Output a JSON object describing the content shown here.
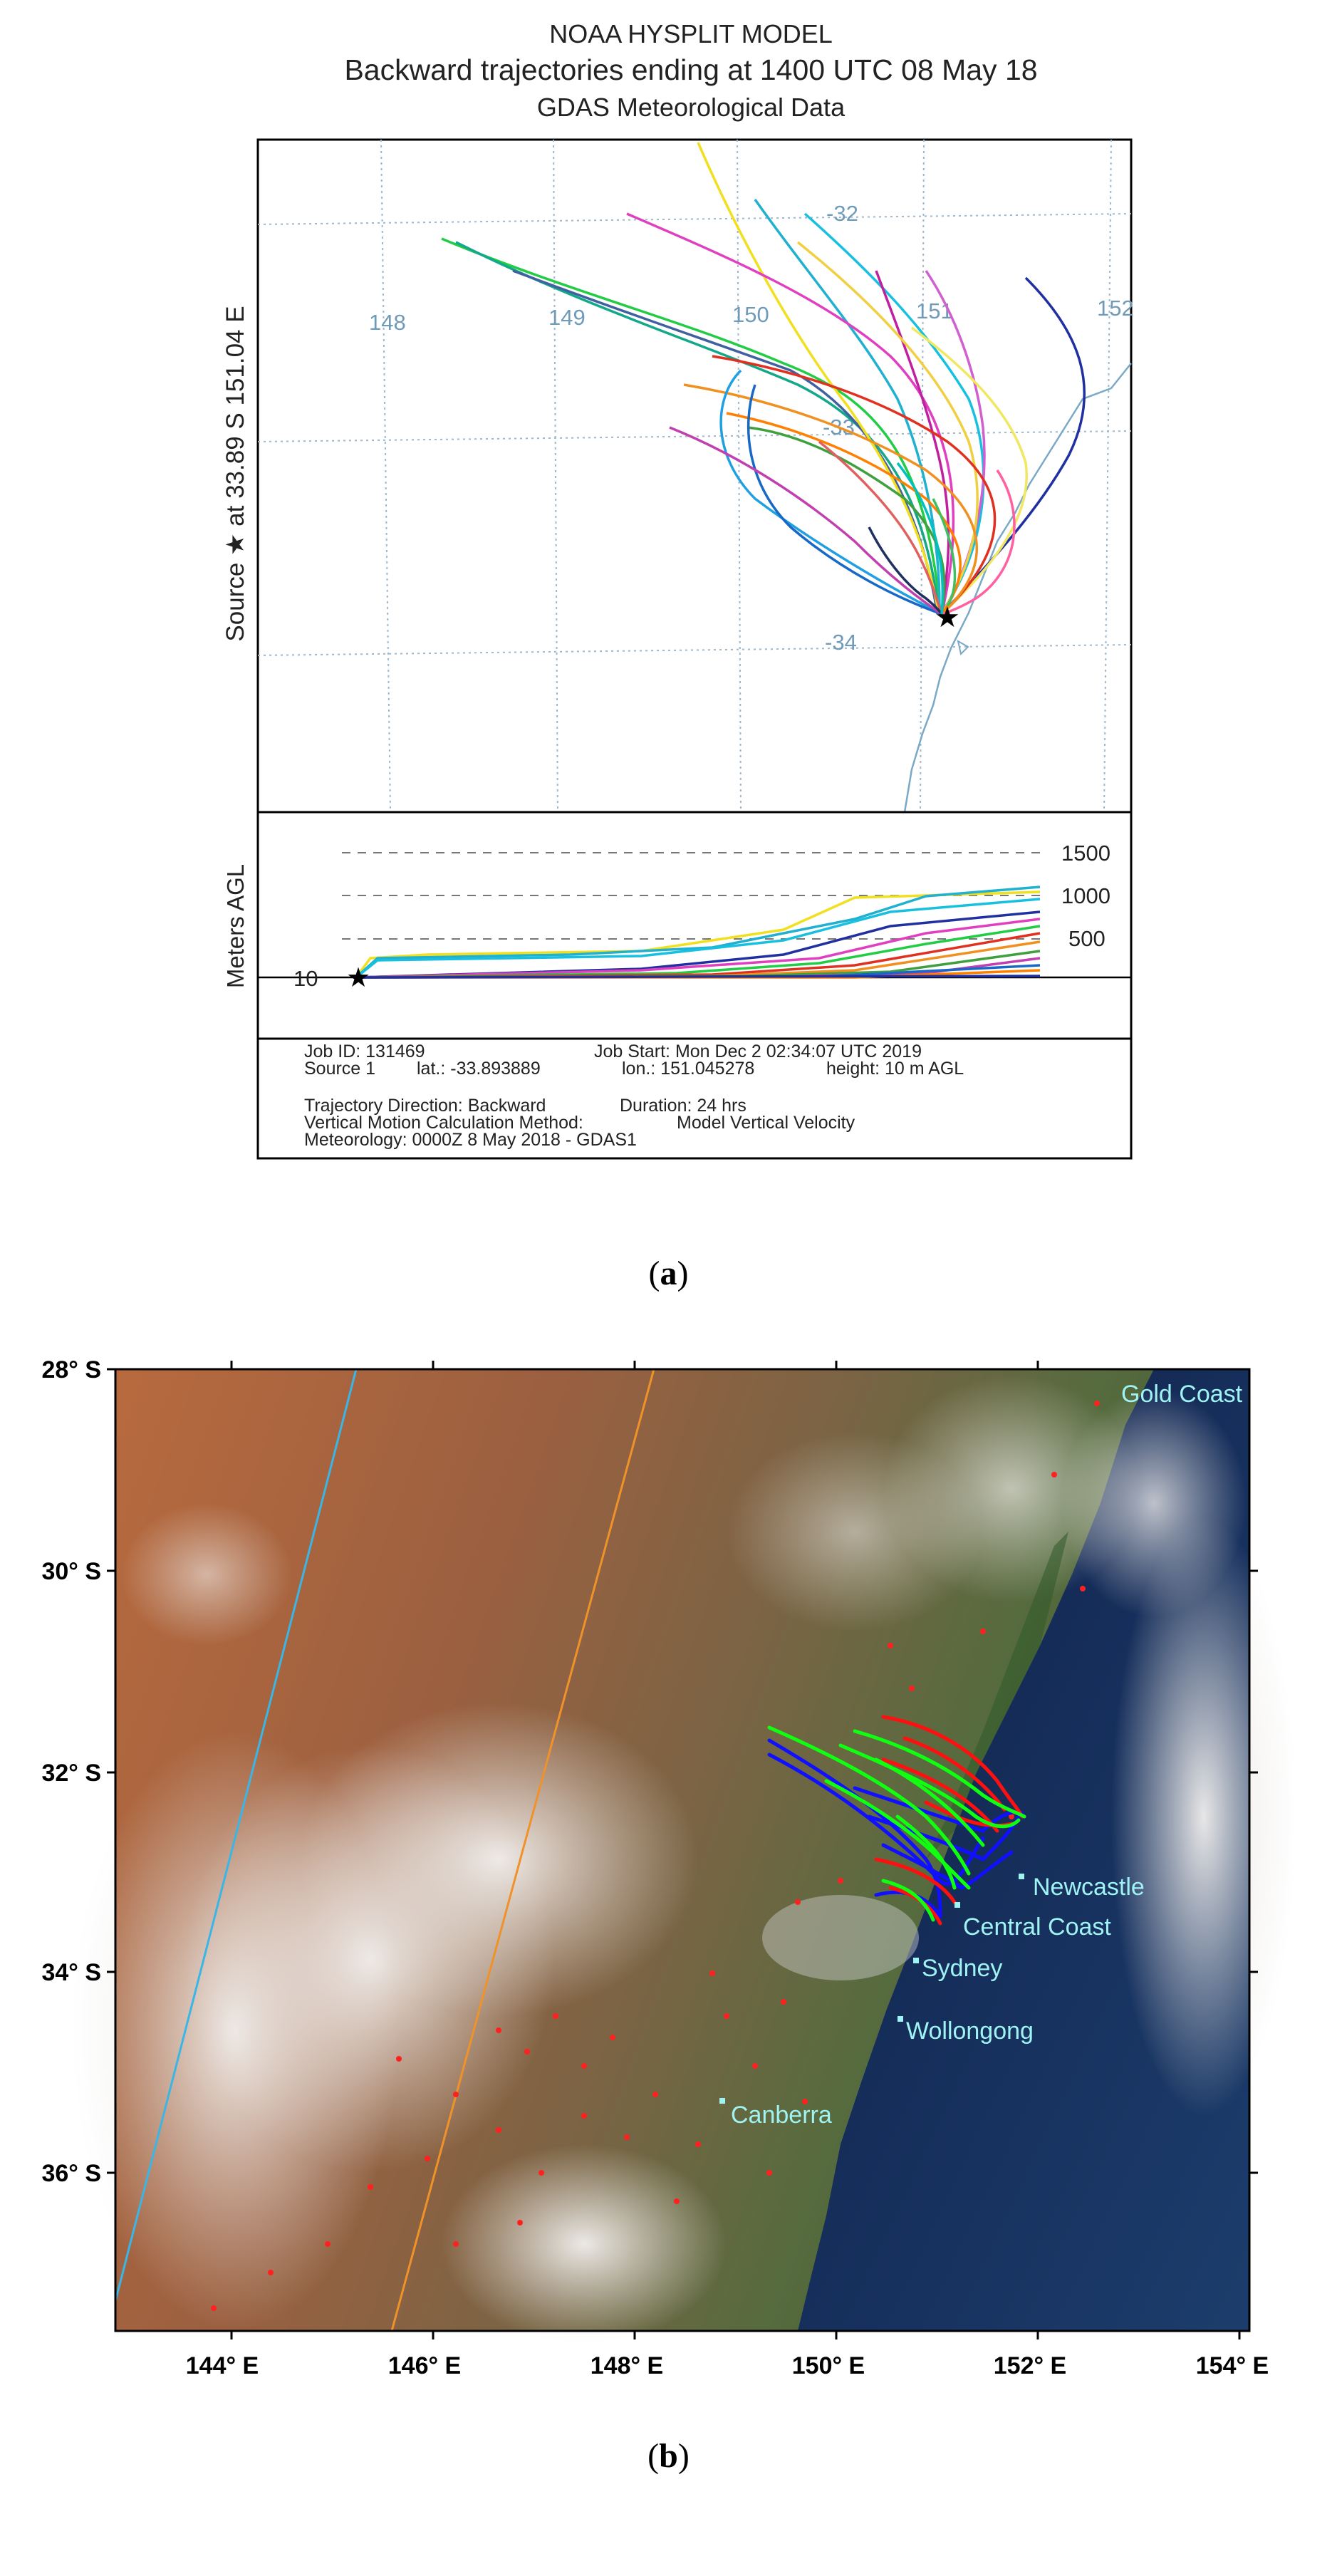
{
  "panel_a": {
    "caption": "a",
    "title_line1": "NOAA HYSPLIT MODEL",
    "title_line2": "Backward trajectories ending at 1400 UTC 08 May 18",
    "title_line3": "GDAS Meteorological Data",
    "y_label": "Source ★ at 33.89 S 151.04 E",
    "lon_labels": [
      "148",
      "149",
      "150",
      "151",
      "152"
    ],
    "lat_labels": [
      "-32",
      "-33",
      "-34"
    ],
    "height_axis_label": "Meters AGL",
    "height_labels": [
      "1500",
      "1000",
      "500"
    ],
    "base_height_label": "10",
    "info": {
      "job_id": "Job ID: 131469",
      "job_start": "Job Start: Mon Dec  2 02:34:07 UTC 2019",
      "source": "Source 1",
      "lat": "lat.: -33.893889",
      "lon": "lon.: 151.045278",
      "height": "height: 10 m AGL",
      "direction": "Trajectory Direction: Backward",
      "duration": "Duration: 24 hrs",
      "vertical": "Vertical Motion Calculation Method:",
      "vertical_value": "Model Vertical Velocity",
      "meteorology": "Meteorology: 0000Z  8 May 2018 - GDAS1"
    },
    "colors": {
      "frame": "#000000",
      "grid": "#9db8cc",
      "coast": "#7aa9c8",
      "label": "#6f9bb8"
    }
  },
  "panel_b": {
    "caption": "b",
    "lat_ticks": [
      "28° S",
      "30° S",
      "32° S",
      "34° S",
      "36° S"
    ],
    "lon_ticks": [
      "144° E",
      "146° E",
      "148° E",
      "150° E",
      "152° E",
      "154° E"
    ],
    "places": [
      {
        "name": "Gold Coast"
      },
      {
        "name": "Newcastle"
      },
      {
        "name": "Central Coast"
      },
      {
        "name": "Sydney"
      },
      {
        "name": "Wollongong"
      },
      {
        "name": "Canberra"
      }
    ],
    "colors": {
      "place_label": "#9ff3f3",
      "traj_red": "#ff1010",
      "traj_green": "#10ff10",
      "traj_blue": "#1010ff",
      "fire": "#ff2020",
      "orbit_cyan": "#3ab6e6",
      "orbit_orange": "#f0922a"
    }
  }
}
